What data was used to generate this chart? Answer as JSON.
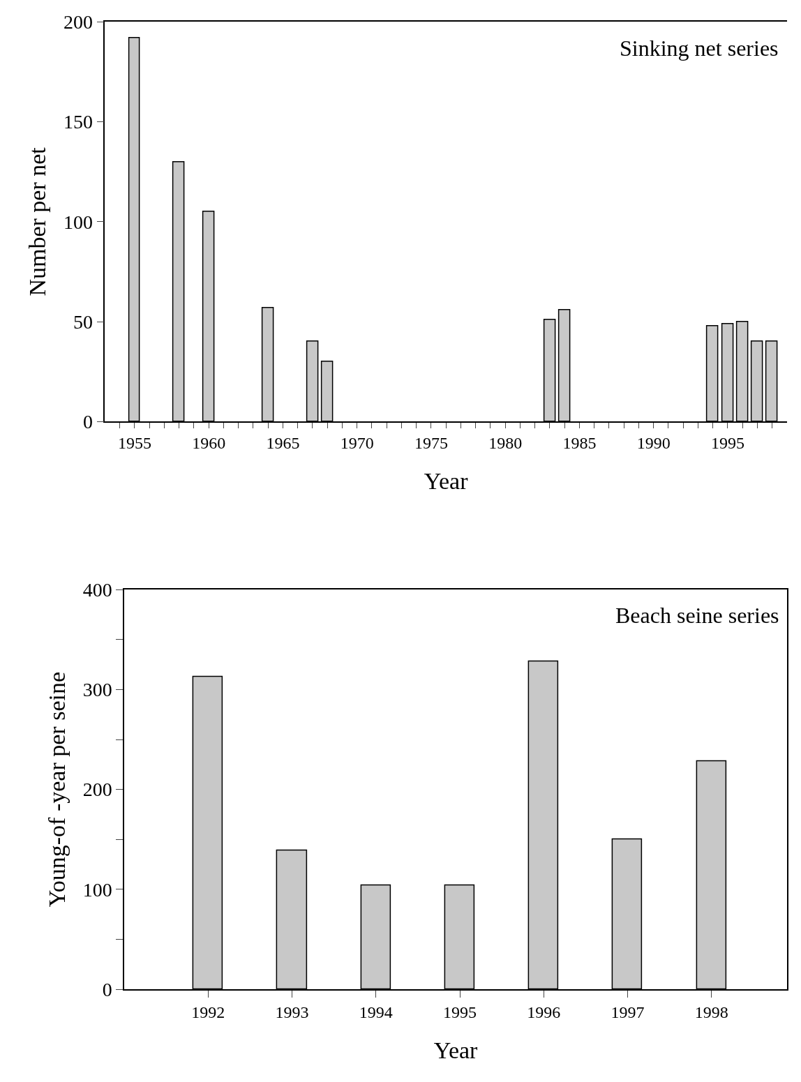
{
  "chart_data": [
    {
      "type": "bar",
      "x": [
        1955,
        1958,
        1960,
        1964,
        1967,
        1968,
        1983,
        1984,
        1994,
        1995,
        1996,
        1997,
        1998
      ],
      "values": [
        192,
        130,
        105,
        57,
        40,
        30,
        51,
        56,
        48,
        49,
        50,
        40,
        40
      ],
      "color": "#c8c8c8",
      "xlabel": "Year",
      "ylabel": "Number per net",
      "annotations": [
        "Sinking net series"
      ],
      "xlim": [
        1953,
        1999
      ],
      "ylim": [
        0,
        200
      ],
      "yticks": [
        0,
        50,
        100,
        150,
        200
      ],
      "xticks": [
        {
          "value": 1954,
          "label": null
        },
        1955,
        {
          "value": 1956,
          "label": null
        },
        {
          "value": 1957,
          "label": null
        },
        {
          "value": 1958,
          "label": null
        },
        {
          "value": 1959,
          "label": null
        },
        1960,
        {
          "value": 1961,
          "label": null
        },
        {
          "value": 1962,
          "label": null
        },
        {
          "value": 1963,
          "label": null
        },
        {
          "value": 1964,
          "label": null
        },
        1965,
        {
          "value": 1966,
          "label": null
        },
        {
          "value": 1967,
          "label": null
        },
        {
          "value": 1968,
          "label": null
        },
        {
          "value": 1969,
          "label": null
        },
        1970,
        {
          "value": 1971,
          "label": null
        },
        {
          "value": 1972,
          "label": null
        },
        {
          "value": 1973,
          "label": null
        },
        {
          "value": 1974,
          "label": null
        },
        1975,
        {
          "value": 1976,
          "label": null
        },
        {
          "value": 1977,
          "label": null
        },
        {
          "value": 1978,
          "label": null
        },
        {
          "value": 1979,
          "label": null
        },
        1980,
        {
          "value": 1981,
          "label": null
        },
        {
          "value": 1982,
          "label": null
        },
        {
          "value": 1983,
          "label": null
        },
        {
          "value": 1984,
          "label": null
        },
        1985,
        {
          "value": 1986,
          "label": null
        },
        {
          "value": 1987,
          "label": null
        },
        {
          "value": 1988,
          "label": null
        },
        {
          "value": 1989,
          "label": null
        },
        1990,
        {
          "value": 1991,
          "label": null
        },
        {
          "value": 1992,
          "label": null
        },
        {
          "value": 1993,
          "label": null
        },
        {
          "value": 1994,
          "label": null
        },
        1995,
        {
          "value": 1996,
          "label": null
        },
        {
          "value": 1997,
          "label": null
        },
        {
          "value": 1998,
          "label": null
        }
      ],
      "title": null
    },
    {
      "type": "bar",
      "categories": [
        "1992",
        "1993",
        "1994",
        "1995",
        "1996",
        "1997",
        "1998"
      ],
      "values": [
        313,
        139,
        104,
        104,
        328,
        150,
        228
      ],
      "color": "#c8c8c8",
      "xlabel": "Year",
      "ylabel": "Young-of -year per seine",
      "annotations": [
        "Beach seine series"
      ],
      "ylim": [
        0,
        400
      ],
      "yticks": [
        0,
        {
          "value": 50,
          "label": null
        },
        100,
        {
          "value": 150,
          "label": null
        },
        200,
        {
          "value": 250,
          "label": null
        },
        300,
        {
          "value": 350,
          "label": null
        },
        400
      ],
      "title": null
    }
  ]
}
